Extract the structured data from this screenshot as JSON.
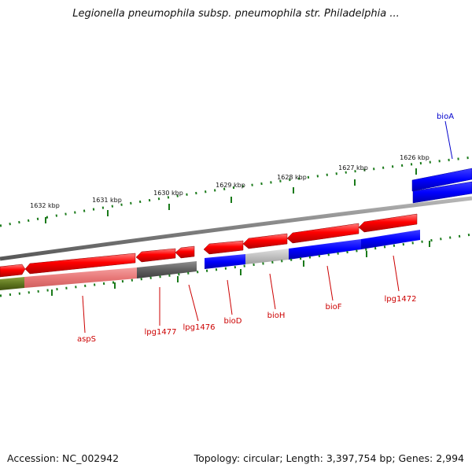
{
  "title": "Legionella pneumophila subsp. pneumophila str. Philadelphia ...",
  "footer": {
    "accession_label": "Accession:",
    "accession": "NC_002942",
    "topology_label": "Topology:",
    "topology": "circular",
    "length_label": "Length:",
    "length": "3,397,754 bp",
    "genes_label": "Genes:",
    "genes": "2,994"
  },
  "scale_labels": [
    "1632 kbp",
    "1631 kbp",
    "1630 kbp",
    "1629 kbp",
    "1628 kbp",
    "1627 kbp",
    "1626 kbp"
  ],
  "colors": {
    "forward_gene": "#ff0000",
    "reverse_gene": "#0000ff",
    "label_forward": "#cc0000",
    "label_reverse": "#0000cc",
    "backbone": "#808080",
    "ticks": "#1a7a1a"
  },
  "gene_labels": [
    {
      "name": "aspS",
      "color": "#cc0000"
    },
    {
      "name": "lpg1477",
      "color": "#cc0000"
    },
    {
      "name": "lpg1476",
      "color": "#cc0000"
    },
    {
      "name": "bioD",
      "color": "#cc0000"
    },
    {
      "name": "bioH",
      "color": "#cc0000"
    },
    {
      "name": "bioF",
      "color": "#cc0000"
    },
    {
      "name": "lpg1472",
      "color": "#cc0000"
    },
    {
      "name": "bioA",
      "color": "#0000cc"
    }
  ]
}
